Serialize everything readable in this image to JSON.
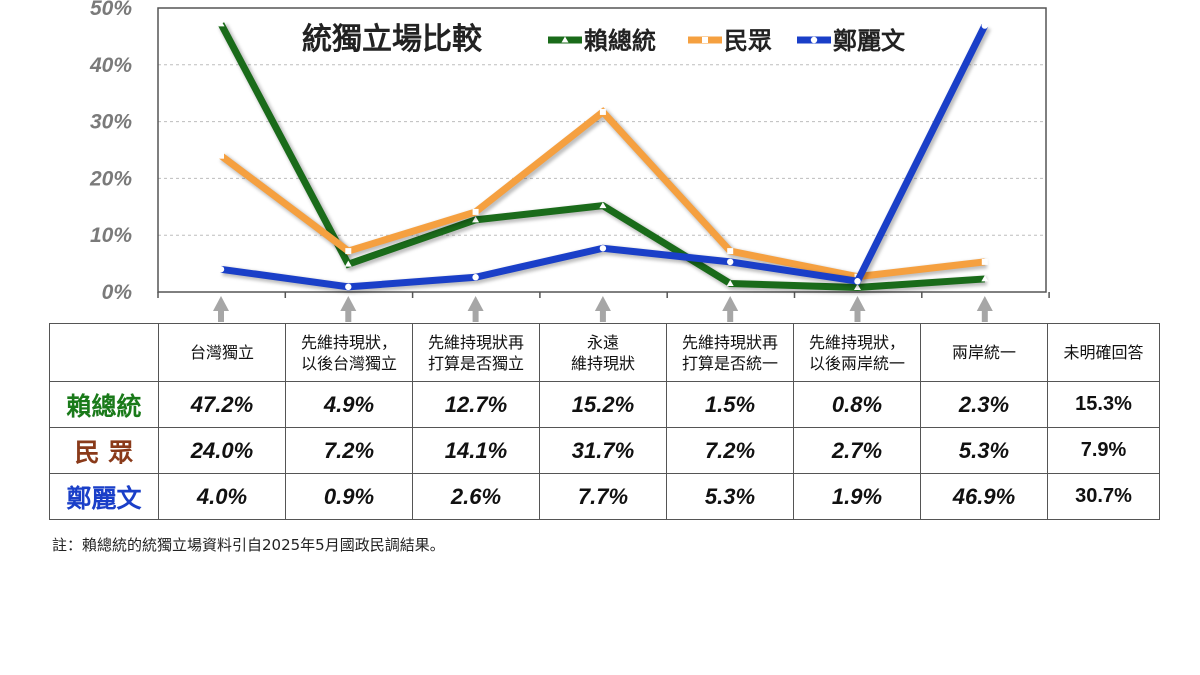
{
  "chart_data": {
    "type": "line",
    "title": "統獨立場比較",
    "y_ticks": [
      "0%",
      "10%",
      "20%",
      "30%",
      "40%",
      "50%"
    ],
    "ylim": [
      0,
      50
    ],
    "grid": true,
    "legend_position": "top",
    "categories": [
      [
        "台灣獨立"
      ],
      [
        "先維持現狀，",
        "以後台灣獨立"
      ],
      [
        "先維持現狀再",
        "打算是否獨立"
      ],
      [
        "永遠",
        "維持現狀"
      ],
      [
        "先維持現狀再",
        "打算是否統一"
      ],
      [
        "先維持現狀，",
        "以後兩岸統一"
      ],
      [
        "兩岸統一"
      ],
      [
        "未明確回答"
      ]
    ],
    "plotted_category_count": 7,
    "series": [
      {
        "name": "賴總統",
        "color": "#1a6b1a",
        "marker": "triangle",
        "display": [
          "47.2%",
          "4.9%",
          "12.7%",
          "15.2%",
          "1.5%",
          "0.8%",
          "2.3%",
          "15.3%"
        ],
        "values": [
          47.2,
          4.9,
          12.7,
          15.2,
          1.5,
          0.8,
          2.3,
          15.3
        ]
      },
      {
        "name": "民眾",
        "color": "#f5a040",
        "marker": "square",
        "display": [
          "24.0%",
          "7.2%",
          "14.1%",
          "31.7%",
          "7.2%",
          "2.7%",
          "5.3%",
          "7.9%"
        ],
        "values": [
          24.0,
          7.2,
          14.1,
          31.7,
          7.2,
          2.7,
          5.3,
          7.9
        ]
      },
      {
        "name": "鄭麗文",
        "color": "#1a3fc8",
        "marker": "circle",
        "display": [
          "4.0%",
          "0.9%",
          "2.6%",
          "7.7%",
          "5.3%",
          "1.9%",
          "46.9%",
          "30.7%"
        ],
        "values": [
          4.0,
          0.9,
          2.6,
          7.7,
          5.3,
          1.9,
          46.9,
          30.7
        ]
      }
    ],
    "row_label_colors": [
      "#1a7a1a",
      "#8a3a1a",
      "#1a3fc8"
    ],
    "arrow_color": "#a6a6a6"
  },
  "table": {
    "row_labels": [
      "賴總統",
      "民 眾",
      "鄭麗文"
    ]
  },
  "note": "註：賴總統的統獨立場資料引自2025年5月國政民調結果。"
}
